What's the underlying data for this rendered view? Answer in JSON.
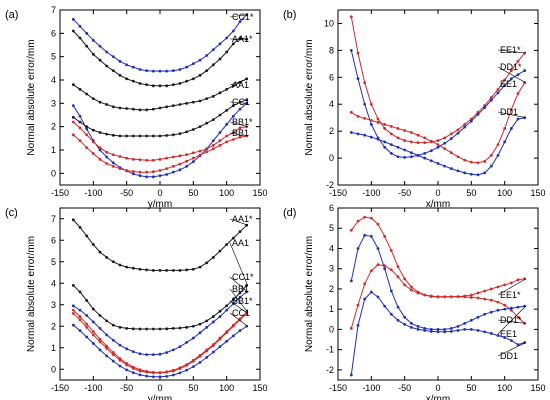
{
  "colors": {
    "blue": "#1f2fbf",
    "red": "#d42a2a",
    "black": "#1a1a1a"
  },
  "chart_data": [
    {
      "type": "line",
      "panel_label": "(a)",
      "xlabel": "y/mm",
      "ylabel": "Normal absolute error/mm",
      "xlim": [
        -150,
        150
      ],
      "ylim": [
        -0.5,
        7
      ],
      "xticks": [
        -150,
        -100,
        -50,
        0,
        50,
        100,
        150
      ],
      "yticks": [
        0,
        1,
        2,
        3,
        4,
        5,
        6,
        7
      ],
      "x": [
        -130,
        -120,
        -110,
        -100,
        -90,
        -80,
        -70,
        -60,
        -50,
        -40,
        -30,
        -20,
        -10,
        0,
        10,
        20,
        30,
        40,
        50,
        60,
        70,
        80,
        90,
        100,
        110,
        120,
        130
      ],
      "series": [
        {
          "name": "CC1*",
          "color": "blue",
          "values": [
            6.6,
            6.3,
            6.0,
            5.7,
            5.45,
            5.2,
            5.0,
            4.8,
            4.65,
            4.55,
            4.45,
            4.4,
            4.38,
            4.38,
            4.38,
            4.4,
            4.45,
            4.55,
            4.7,
            4.85,
            5.05,
            5.3,
            5.55,
            5.8,
            6.1,
            6.5,
            6.8
          ]
        },
        {
          "name": "AA1*",
          "color": "black",
          "values": [
            6.1,
            5.8,
            5.45,
            5.1,
            4.85,
            4.6,
            4.4,
            4.2,
            4.05,
            3.95,
            3.85,
            3.8,
            3.75,
            3.75,
            3.75,
            3.8,
            3.85,
            3.95,
            4.05,
            4.2,
            4.4,
            4.65,
            4.9,
            5.2,
            5.55,
            5.8,
            5.75
          ]
        },
        {
          "name": "AA1",
          "color": "black",
          "values": [
            3.8,
            3.6,
            3.4,
            3.2,
            3.05,
            2.95,
            2.85,
            2.8,
            2.78,
            2.75,
            2.72,
            2.72,
            2.75,
            2.8,
            2.85,
            2.9,
            2.95,
            3.0,
            3.05,
            3.1,
            3.2,
            3.3,
            3.45,
            3.6,
            3.75,
            3.9,
            4.05
          ]
        },
        {
          "name": "CC1",
          "color": "blue",
          "values": [
            2.9,
            2.45,
            1.9,
            1.4,
            1.0,
            0.7,
            0.45,
            0.25,
            0.1,
            -0.02,
            -0.1,
            -0.15,
            -0.15,
            -0.1,
            -0.05,
            0.05,
            0.15,
            0.3,
            0.5,
            0.75,
            1.05,
            1.4,
            1.75,
            2.1,
            2.45,
            2.75,
            3.0
          ]
        },
        {
          "name": "BB1*",
          "color": "red",
          "values": [
            2.2,
            1.95,
            1.65,
            1.35,
            1.1,
            0.9,
            0.8,
            0.72,
            0.65,
            0.6,
            0.58,
            0.56,
            0.56,
            0.6,
            0.65,
            0.7,
            0.75,
            0.8,
            0.88,
            0.95,
            1.05,
            1.2,
            1.4,
            1.6,
            1.75,
            1.95,
            2.0
          ]
        },
        {
          "name": "BB1",
          "color": "red",
          "values": [
            1.65,
            1.4,
            1.1,
            0.85,
            0.6,
            0.42,
            0.3,
            0.2,
            0.12,
            0.08,
            0.05,
            0.05,
            0.07,
            0.12,
            0.2,
            0.3,
            0.4,
            0.52,
            0.65,
            0.78,
            0.92,
            1.05,
            1.2,
            1.35,
            1.45,
            1.55,
            1.6
          ]
        },
        {
          "name": "",
          "color": "black",
          "values": [
            2.4,
            2.2,
            2.0,
            1.85,
            1.75,
            1.68,
            1.63,
            1.6,
            1.6,
            1.6,
            1.6,
            1.6,
            1.6,
            1.6,
            1.62,
            1.65,
            1.7,
            1.78,
            1.88,
            2.0,
            2.15,
            2.3,
            2.5,
            2.7,
            2.9,
            3.05,
            3.15
          ]
        }
      ]
    },
    {
      "type": "line",
      "panel_label": "(b)",
      "xlabel": "x/mm",
      "ylabel": "Normal absolute error/mm",
      "xlim": [
        -150,
        150
      ],
      "ylim": [
        -2,
        11
      ],
      "xticks": [
        -150,
        -100,
        -50,
        0,
        50,
        100,
        150
      ],
      "yticks": [
        -2,
        0,
        2,
        4,
        6,
        8,
        10
      ],
      "x": [
        -130,
        -120,
        -110,
        -100,
        -90,
        -80,
        -70,
        -60,
        -50,
        -40,
        -30,
        -20,
        -10,
        0,
        10,
        20,
        30,
        40,
        50,
        60,
        70,
        80,
        90,
        100,
        110,
        120,
        130
      ],
      "series": [
        {
          "name": "EE1*",
          "color": "red",
          "values": [
            10.5,
            7.8,
            5.6,
            4.0,
            2.9,
            2.2,
            1.8,
            1.5,
            1.3,
            1.2,
            1.15,
            1.15,
            1.2,
            1.3,
            1.5,
            1.8,
            2.1,
            2.5,
            2.9,
            3.4,
            3.9,
            4.5,
            5.1,
            5.8,
            6.5,
            7.2,
            7.8
          ]
        },
        {
          "name": "",
          "color": "blue",
          "values": [
            8.0,
            5.9,
            4.0,
            2.5,
            1.5,
            0.8,
            0.35,
            0.1,
            0.05,
            0.1,
            0.2,
            0.35,
            0.55,
            0.8,
            1.1,
            1.45,
            1.85,
            2.3,
            2.75,
            3.25,
            3.75,
            4.3,
            4.85,
            5.4,
            5.9,
            6.2,
            6.5
          ]
        },
        {
          "name": "DD1*",
          "color": "red",
          "values": [
            3.4,
            3.1,
            2.95,
            2.8,
            2.65,
            2.5,
            2.35,
            2.2,
            2.05,
            1.9,
            1.7,
            1.5,
            1.25,
            1.0,
            0.7,
            0.4,
            0.1,
            -0.15,
            -0.3,
            -0.35,
            -0.25,
            0.2,
            1.0,
            2.2,
            3.6,
            4.8,
            5.6
          ]
        },
        {
          "name": "DD1",
          "color": "blue",
          "values": [
            1.9,
            1.8,
            1.7,
            1.55,
            1.4,
            1.2,
            1.0,
            0.8,
            0.6,
            0.4,
            0.2,
            0.0,
            -0.2,
            -0.4,
            -0.6,
            -0.78,
            -0.95,
            -1.1,
            -1.2,
            -1.25,
            -1.1,
            -0.6,
            0.2,
            1.2,
            2.2,
            2.9,
            3.0
          ]
        }
      ],
      "labels_extra": [
        "EE1"
      ]
    },
    {
      "type": "line",
      "panel_label": "(c)",
      "xlabel": "y/mm",
      "ylabel": "Normal absolute error/mm",
      "xlim": [
        -150,
        150
      ],
      "ylim": [
        -0.5,
        7.5
      ],
      "xticks": [
        -150,
        -100,
        -50,
        0,
        50,
        100,
        150
      ],
      "yticks": [
        0,
        1,
        2,
        3,
        4,
        5,
        6,
        7
      ],
      "x": [
        -130,
        -120,
        -110,
        -100,
        -90,
        -80,
        -70,
        -60,
        -50,
        -40,
        -30,
        -20,
        -10,
        0,
        10,
        20,
        30,
        40,
        50,
        60,
        70,
        80,
        90,
        100,
        110,
        120,
        130
      ],
      "series": [
        {
          "name": "AA1*",
          "color": "black",
          "values": [
            6.95,
            6.6,
            6.2,
            5.8,
            5.45,
            5.2,
            5.0,
            4.85,
            4.75,
            4.7,
            4.65,
            4.62,
            4.6,
            4.6,
            4.6,
            4.6,
            4.6,
            4.62,
            4.65,
            4.75,
            4.95,
            5.2,
            5.5,
            5.8,
            6.1,
            6.4,
            6.7
          ]
        },
        {
          "name": "AA1",
          "color": "black",
          "values": [
            3.9,
            3.6,
            3.2,
            2.8,
            2.5,
            2.25,
            2.05,
            1.95,
            1.9,
            1.88,
            1.87,
            1.87,
            1.87,
            1.87,
            1.88,
            1.9,
            1.92,
            1.95,
            2.0,
            2.1,
            2.25,
            2.45,
            2.7,
            2.95,
            3.25,
            3.55,
            3.9
          ]
        },
        {
          "name": "CC1*",
          "color": "blue",
          "values": [
            2.95,
            2.75,
            2.5,
            2.2,
            1.9,
            1.6,
            1.35,
            1.12,
            0.95,
            0.82,
            0.72,
            0.68,
            0.68,
            0.7,
            0.78,
            0.9,
            1.05,
            1.25,
            1.45,
            1.7,
            1.95,
            2.2,
            2.45,
            2.75,
            3.05,
            3.35,
            3.6
          ]
        },
        {
          "name": "BB1",
          "color": "red",
          "values": [
            2.75,
            2.45,
            2.1,
            1.75,
            1.4,
            1.08,
            0.78,
            0.5,
            0.27,
            0.1,
            -0.02,
            -0.1,
            -0.14,
            -0.15,
            -0.12,
            -0.05,
            0.07,
            0.22,
            0.42,
            0.65,
            0.9,
            1.15,
            1.45,
            1.75,
            2.05,
            2.35,
            2.65
          ]
        },
        {
          "name": "BB1*",
          "color": "red",
          "values": [
            2.6,
            2.3,
            1.95,
            1.6,
            1.28,
            0.97,
            0.68,
            0.42,
            0.2,
            0.04,
            -0.08,
            -0.14,
            -0.17,
            -0.17,
            -0.14,
            -0.08,
            0.03,
            0.18,
            0.37,
            0.6,
            0.85,
            1.1,
            1.4,
            1.7,
            2.0,
            2.3,
            2.6
          ]
        },
        {
          "name": "CC1",
          "color": "blue",
          "values": [
            2.05,
            1.8,
            1.5,
            1.2,
            0.9,
            0.62,
            0.38,
            0.15,
            -0.03,
            -0.16,
            -0.26,
            -0.32,
            -0.35,
            -0.35,
            -0.33,
            -0.27,
            -0.17,
            -0.04,
            0.12,
            0.32,
            0.55,
            0.8,
            1.05,
            1.3,
            1.55,
            1.8,
            2.0
          ]
        }
      ]
    },
    {
      "type": "line",
      "panel_label": "(d)",
      "xlabel": "x/mm",
      "ylabel": "Normal absolute error/mm",
      "xlim": [
        -150,
        150
      ],
      "ylim": [
        -2.5,
        6
      ],
      "xticks": [
        -150,
        -100,
        -50,
        0,
        50,
        100,
        150
      ],
      "yticks": [
        -2,
        -1,
        0,
        1,
        2,
        3,
        4,
        5,
        6
      ],
      "x": [
        -130,
        -120,
        -110,
        -100,
        -90,
        -80,
        -70,
        -60,
        -50,
        -40,
        -30,
        -20,
        -10,
        0,
        10,
        20,
        30,
        40,
        50,
        60,
        70,
        80,
        90,
        100,
        110,
        120,
        130
      ],
      "series": [
        {
          "name": "EE1*",
          "color": "red",
          "values": [
            4.9,
            5.35,
            5.55,
            5.5,
            5.2,
            4.6,
            3.9,
            3.1,
            2.5,
            2.1,
            1.85,
            1.7,
            1.62,
            1.6,
            1.6,
            1.6,
            1.62,
            1.65,
            1.7,
            1.8,
            1.9,
            2.0,
            2.1,
            2.2,
            2.3,
            2.45,
            2.5
          ]
        },
        {
          "name": "DD1*",
          "color": "red",
          "values": [
            0.05,
            1.2,
            2.25,
            2.9,
            3.2,
            3.15,
            2.95,
            2.6,
            2.2,
            1.95,
            1.8,
            1.7,
            1.65,
            1.62,
            1.62,
            1.62,
            1.62,
            1.6,
            1.58,
            1.55,
            1.5,
            1.45,
            1.35,
            1.2,
            0.95,
            0.6,
            0.3
          ]
        },
        {
          "name": "EE1",
          "color": "blue",
          "values": [
            2.4,
            4.0,
            4.65,
            4.6,
            4.0,
            3.0,
            1.9,
            1.1,
            0.6,
            0.3,
            0.15,
            0.05,
            0.0,
            0.0,
            0.0,
            0.05,
            0.15,
            0.3,
            0.45,
            0.6,
            0.75,
            0.85,
            0.95,
            1.0,
            1.05,
            1.1,
            1.15
          ]
        },
        {
          "name": "DD1",
          "color": "blue",
          "values": [
            -2.25,
            0.2,
            1.5,
            1.85,
            1.6,
            1.15,
            0.75,
            0.45,
            0.25,
            0.1,
            0.0,
            -0.05,
            -0.1,
            -0.12,
            -0.12,
            -0.1,
            -0.05,
            0.0,
            0.0,
            -0.05,
            -0.12,
            -0.2,
            -0.3,
            -0.4,
            -0.55,
            -0.75,
            -0.65
          ]
        }
      ]
    }
  ]
}
